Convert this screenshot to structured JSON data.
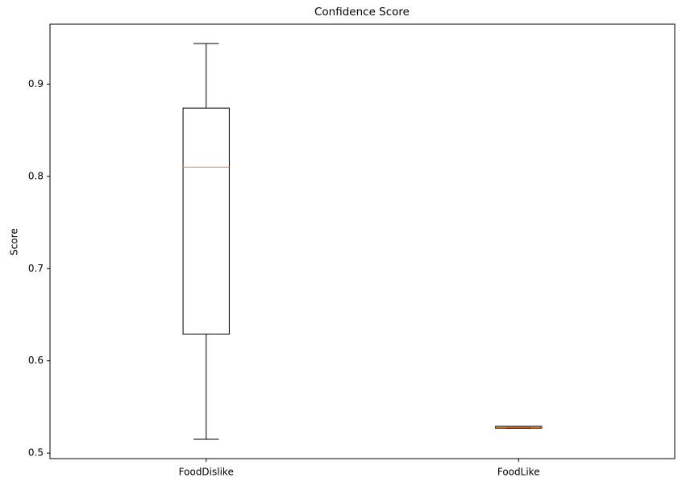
{
  "chart_data": {
    "type": "box",
    "title": "Confidence Score",
    "ylabel": "Score",
    "categories": [
      "FoodDislike",
      "FoodLike"
    ],
    "min": [
      0.515,
      0.527
    ],
    "q1": [
      0.629,
      0.527
    ],
    "median": [
      0.81,
      0.528
    ],
    "q3": [
      0.874,
      0.529
    ],
    "max": [
      0.944,
      0.529
    ],
    "ylim": [
      0.494,
      0.965
    ],
    "yticks": [
      0.5,
      0.6,
      0.7,
      0.8,
      0.9
    ],
    "box_color": "#000000",
    "median_color": "#ff7f0e",
    "grid": false
  }
}
